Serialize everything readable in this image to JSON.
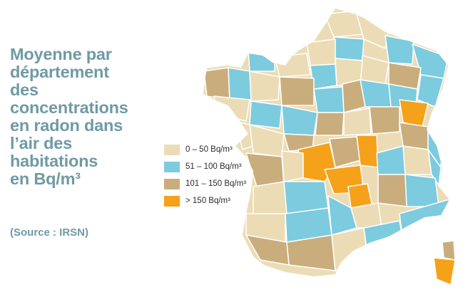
{
  "title_lines": [
    "Moyenne par",
    "département",
    "des",
    "concentrations",
    "en radon dans",
    "l’air des",
    "habitations",
    "en Bq/m³"
  ],
  "source": "(Source : IRSN)",
  "legend": [
    {
      "label": "0 – 50 Bq/m³",
      "color": "#ecdcb6",
      "key": "c1"
    },
    {
      "label": "51 – 100 Bq/m³",
      "color": "#7ccbdf",
      "key": "c2"
    },
    {
      "label": "101 – 150 Bq/m³",
      "color": "#c9ad7c",
      "key": "c3"
    },
    {
      "label": "> 150 Bq/m³",
      "color": "#f5a11a",
      "key": "c4"
    }
  ],
  "colors": {
    "title": "#6f9aa4",
    "c1": "#ecdcb6",
    "c2": "#7ccbdf",
    "c3": "#c9ad7c",
    "c4": "#f5a11a",
    "border": "#ffffff"
  }
}
